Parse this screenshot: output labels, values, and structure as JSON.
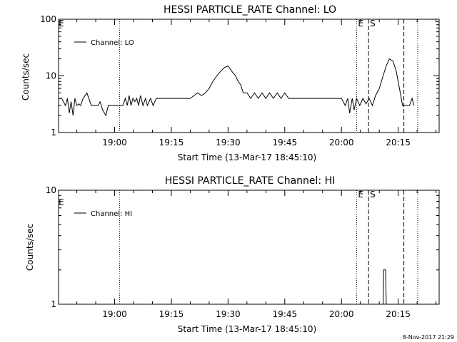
{
  "footer_timestamp": "8-Nov-2017 21:29",
  "chart_data": [
    {
      "type": "line",
      "title": "HESSI PARTICLE_RATE Channel: LO",
      "xlabel": "Start Time (13-Mar-17 18:45:10)",
      "ylabel": "Counts/sec",
      "yscale": "log",
      "ylim": [
        1,
        100
      ],
      "y_ticks": [
        {
          "value": 1,
          "label": "1"
        },
        {
          "value": 10,
          "label": "10"
        },
        {
          "value": 100,
          "label": "100"
        }
      ],
      "xlim": [
        "18:45:10",
        "20:25:50"
      ],
      "x_ticks": [
        "19:00",
        "19:15",
        "19:30",
        "19:45",
        "20:00",
        "20:15"
      ],
      "legend": {
        "position": "top-left",
        "entries": [
          "Channel: LO"
        ]
      },
      "markers": [
        {
          "time": "19:01:20",
          "style": "dotted",
          "label": ""
        },
        {
          "time": "20:04:00",
          "style": "dotted",
          "label": "E"
        },
        {
          "time": "20:07:10",
          "style": "dashed",
          "label": "S"
        },
        {
          "time": "20:16:30",
          "style": "dashed",
          "label": ""
        },
        {
          "time": "20:20:10",
          "style": "dotted",
          "label": ""
        }
      ],
      "edge_label": "E",
      "series": [
        {
          "name": "Channel: LO",
          "x": [
            "18:45:10",
            "18:46:00",
            "18:47:00",
            "18:47:30",
            "18:48:00",
            "18:48:30",
            "18:49:00",
            "18:49:30",
            "18:50:00",
            "18:50:30",
            "18:51:00",
            "18:51:40",
            "18:52:40",
            "18:53:10",
            "18:53:50",
            "18:55:00",
            "18:55:40",
            "18:56:10",
            "18:56:50",
            "18:57:40",
            "18:58:20",
            "18:58:50",
            "18:59:20",
            "19:00:00",
            "19:00:40",
            "19:01:10",
            "19:02:10",
            "19:02:50",
            "19:03:20",
            "19:03:50",
            "19:04:20",
            "19:04:50",
            "19:05:20",
            "19:05:50",
            "19:06:20",
            "19:06:50",
            "19:07:30",
            "19:08:10",
            "19:08:40",
            "19:09:30",
            "19:10:10",
            "19:11:00",
            "19:12:00",
            "19:13:00",
            "19:14:00",
            "19:15:00",
            "19:16:00",
            "19:17:00",
            "19:18:00",
            "19:19:00",
            "19:20:00",
            "19:21:00",
            "19:22:00",
            "19:23:00",
            "19:24:00",
            "19:25:00",
            "19:26:00",
            "19:27:00",
            "19:28:00",
            "19:29:00",
            "19:30:00",
            "19:31:00",
            "19:32:00",
            "19:32:40",
            "19:33:20",
            "19:34:00",
            "19:35:00",
            "19:36:00",
            "19:37:00",
            "19:38:00",
            "19:39:00",
            "19:40:00",
            "19:41:00",
            "19:42:00",
            "19:43:00",
            "19:44:00",
            "19:45:00",
            "19:46:00",
            "19:47:00",
            "19:48:00",
            "19:49:00",
            "19:50:00",
            "19:52:00",
            "19:54:00",
            "19:56:00",
            "19:58:00",
            "20:00:00",
            "20:01:00",
            "20:01:40",
            "20:02:10",
            "20:02:50",
            "20:03:20",
            "20:04:00",
            "20:04:50",
            "20:05:40",
            "20:06:30",
            "20:07:20",
            "20:08:10",
            "20:09:00",
            "20:10:00",
            "20:11:00",
            "20:11:50",
            "20:12:40",
            "20:13:40",
            "20:14:30",
            "20:15:20",
            "20:16:10",
            "20:17:00",
            "20:18:00",
            "20:18:40",
            "20:19:10"
          ],
          "values": [
            4,
            4,
            3,
            4,
            2.2,
            3.5,
            2,
            4,
            3,
            3.2,
            3,
            4,
            5,
            4,
            3,
            3,
            3,
            3.5,
            2.5,
            2,
            3,
            3,
            3,
            3,
            3,
            3,
            3,
            4,
            3,
            4.5,
            3,
            4,
            3.5,
            4,
            3,
            4.5,
            3,
            4,
            3,
            4,
            3,
            4,
            4,
            4,
            4,
            4,
            4,
            4,
            4,
            4,
            4,
            4.5,
            5,
            4.5,
            5,
            6,
            8,
            10,
            12,
            14,
            15,
            12,
            10,
            8,
            7,
            5,
            5,
            4,
            5,
            4,
            5,
            4,
            5,
            4,
            5,
            4,
            5,
            4,
            4,
            4,
            4,
            4,
            4,
            4,
            4,
            4,
            4,
            3,
            4,
            2.2,
            4,
            2.5,
            4,
            3,
            4,
            3.2,
            4,
            3,
            4.5,
            6,
            10,
            15,
            20,
            18,
            12,
            6,
            3,
            3,
            3,
            4,
            3
          ]
        }
      ]
    },
    {
      "type": "line",
      "title": "HESSI PARTICLE_RATE Channel: HI",
      "xlabel": "Start Time (13-Mar-17 18:45:10)",
      "ylabel": "Counts/sec",
      "yscale": "log",
      "ylim": [
        1,
        10
      ],
      "y_ticks": [
        {
          "value": 1,
          "label": "1"
        },
        {
          "value": 10,
          "label": "10"
        }
      ],
      "xlim": [
        "18:45:10",
        "20:25:50"
      ],
      "x_ticks": [
        "19:00",
        "19:15",
        "19:30",
        "19:45",
        "20:00",
        "20:15"
      ],
      "legend": {
        "position": "top-left",
        "entries": [
          "Channel: HI"
        ]
      },
      "markers": [
        {
          "time": "19:01:20",
          "style": "dotted",
          "label": ""
        },
        {
          "time": "20:04:00",
          "style": "dotted",
          "label": "E"
        },
        {
          "time": "20:07:10",
          "style": "dashed",
          "label": "S"
        },
        {
          "time": "20:16:30",
          "style": "dashed",
          "label": ""
        },
        {
          "time": "20:20:10",
          "style": "dotted",
          "label": ""
        }
      ],
      "edge_label": "E",
      "series": [
        {
          "name": "Channel: HI",
          "x": [
            "20:11:00",
            "20:11:10",
            "20:11:20",
            "20:11:40",
            "20:11:50"
          ],
          "values": [
            1,
            2,
            2,
            2,
            1
          ]
        }
      ]
    }
  ]
}
